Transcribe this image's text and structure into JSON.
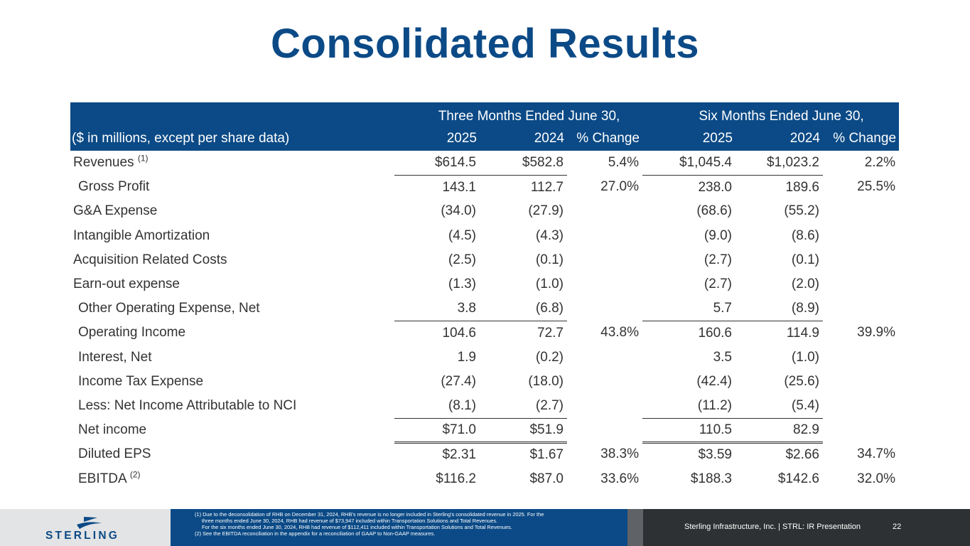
{
  "title": "Consolidated Results",
  "table": {
    "header_groups": [
      "Three Months Ended June 30,",
      "Six Months Ended June 30,"
    ],
    "columns": [
      "($ in millions, except per share data)",
      "2025",
      "2024",
      "% Change",
      "2025",
      "2024",
      "% Change"
    ],
    "rows": [
      {
        "label": "Revenues",
        "sup": "(1)",
        "values": [
          "$614.5",
          "$582.8",
          "5.4%",
          "$1,045.4",
          "$1,023.2",
          "2.2%"
        ]
      },
      {
        "label": "Gross Profit",
        "values": [
          "143.1",
          "112.7",
          "27.0%",
          "238.0",
          "189.6",
          "25.5%"
        ]
      },
      {
        "label": "G&A Expense",
        "values": [
          "(34.0)",
          "(27.9)",
          "",
          "(68.6)",
          "(55.2)",
          ""
        ]
      },
      {
        "label": "Intangible Amortization",
        "values": [
          "(4.5)",
          "(4.3)",
          "",
          "(9.0)",
          "(8.6)",
          ""
        ]
      },
      {
        "label": "Acquisition Related Costs",
        "values": [
          "(2.5)",
          "(0.1)",
          "",
          "(2.7)",
          "(0.1)",
          ""
        ]
      },
      {
        "label": "Earn-out expense",
        "values": [
          "(1.3)",
          "(1.0)",
          "",
          "(2.7)",
          "(2.0)",
          ""
        ]
      },
      {
        "label": "Other Operating Expense, Net",
        "values": [
          "3.8",
          "(6.8)",
          "",
          "5.7",
          "(8.9)",
          ""
        ]
      },
      {
        "label": "Operating Income",
        "values": [
          "104.6",
          "72.7",
          "43.8%",
          "160.6",
          "114.9",
          "39.9%"
        ]
      },
      {
        "label": "Interest, Net",
        "values": [
          "1.9",
          "(0.2)",
          "",
          "3.5",
          "(1.0)",
          ""
        ]
      },
      {
        "label": "Income Tax Expense",
        "values": [
          "(27.4)",
          "(18.0)",
          "",
          "(42.4)",
          "(25.6)",
          ""
        ]
      },
      {
        "label": "Less: Net Income Attributable to NCI",
        "values": [
          "(8.1)",
          "(2.7)",
          "",
          "(11.2)",
          "(5.4)",
          ""
        ]
      },
      {
        "label": "Net income",
        "values": [
          "$71.0",
          "$51.9",
          "",
          "110.5",
          "82.9",
          ""
        ]
      },
      {
        "label": "Diluted EPS",
        "values": [
          "$2.31",
          "$1.67",
          "38.3%",
          "$3.59",
          "$2.66",
          "34.7%"
        ]
      },
      {
        "label": "EBITDA",
        "sup": "(2)",
        "values": [
          "$116.2",
          "$87.0",
          "33.6%",
          "$188.3",
          "$142.6",
          "32.0%"
        ]
      }
    ]
  },
  "footnotes": [
    "(1)  Due to the deconsolidation of RHB on December 31, 2024, RHB's revenue is no longer included in Sterling's consolidated revenue in 2025. For the",
    "three months ended June 30, 2024, RHB had revenue of $73,947 included within Transportation Solutions and Total Revenues.",
    "For the six months ended June 30, 2024, RHB had revenue of $112,411 included within Transportation Solutions and Total Revenues.",
    "(2)  See the EBITDA reconciliation in the appendix for a reconciliation of GAAP to Non-GAAP measures."
  ],
  "footer": {
    "logo_text": "STERLING",
    "source": "Sterling Infrastructure, Inc. | STRL:  IR Presentation",
    "page": "22"
  },
  "colors": {
    "brand_blue": "#0b4a86",
    "footer_dark": "#2e3133",
    "footer_gray": "#5f6266",
    "footer_light": "#e3e4e5"
  }
}
